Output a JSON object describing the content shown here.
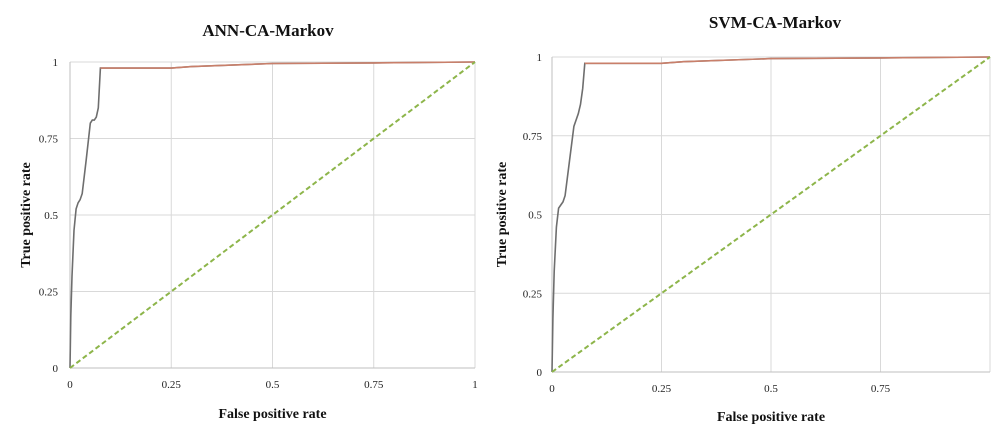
{
  "chart_data": [
    {
      "type": "line",
      "title": "ANN-CA-Markov",
      "xlabel": "False positive rate",
      "ylabel": "True positive rate",
      "xlim": [
        0,
        1
      ],
      "ylim": [
        0,
        1
      ],
      "x_ticks": [
        "0",
        "0.25",
        "0.5",
        "0.75",
        "1"
      ],
      "y_ticks": [
        "0",
        "0.25",
        "0.5",
        "0.75",
        "1"
      ],
      "grid": true,
      "series": [
        {
          "color": "#6e6e6e",
          "overlay_color": "#d9826a",
          "style": "solid",
          "x": [
            0,
            0.002,
            0.005,
            0.01,
            0.015,
            0.02,
            0.025,
            0.03,
            0.04,
            0.05,
            0.055,
            0.06,
            0.065,
            0.07,
            0.075,
            0.08,
            0.25,
            0.3,
            0.5,
            0.75,
            1
          ],
          "y": [
            0,
            0.17,
            0.3,
            0.45,
            0.52,
            0.54,
            0.55,
            0.57,
            0.68,
            0.8,
            0.81,
            0.81,
            0.82,
            0.85,
            0.98,
            0.98,
            0.98,
            0.985,
            0.995,
            0.997,
            1
          ]
        },
        {
          "color": "#8db54a",
          "style": "dashed",
          "x": [
            0,
            1
          ],
          "y": [
            0,
            1
          ]
        }
      ]
    },
    {
      "type": "line",
      "title": "SVM-CA-Markov",
      "xlabel": "False positive rate",
      "ylabel": "True positive rate",
      "xlim": [
        0,
        1
      ],
      "ylim": [
        0,
        1
      ],
      "x_ticks": [
        "0",
        "0.25",
        "0.5",
        "0.75",
        ""
      ],
      "y_ticks": [
        "0",
        "0.25",
        "0.5",
        "0.75",
        "1"
      ],
      "grid": true,
      "series": [
        {
          "color": "#6e6e6e",
          "overlay_color": "#d9826a",
          "style": "solid",
          "x": [
            0,
            0.002,
            0.005,
            0.01,
            0.015,
            0.02,
            0.025,
            0.03,
            0.04,
            0.05,
            0.055,
            0.06,
            0.065,
            0.07,
            0.075,
            0.08,
            0.25,
            0.3,
            0.5,
            0.75,
            1
          ],
          "y": [
            0,
            0.17,
            0.32,
            0.46,
            0.52,
            0.53,
            0.54,
            0.56,
            0.67,
            0.78,
            0.8,
            0.82,
            0.85,
            0.9,
            0.98,
            0.98,
            0.98,
            0.985,
            0.995,
            0.997,
            1
          ]
        },
        {
          "color": "#8db54a",
          "style": "dashed",
          "x": [
            0,
            1
          ],
          "y": [
            0,
            1
          ]
        }
      ]
    }
  ]
}
